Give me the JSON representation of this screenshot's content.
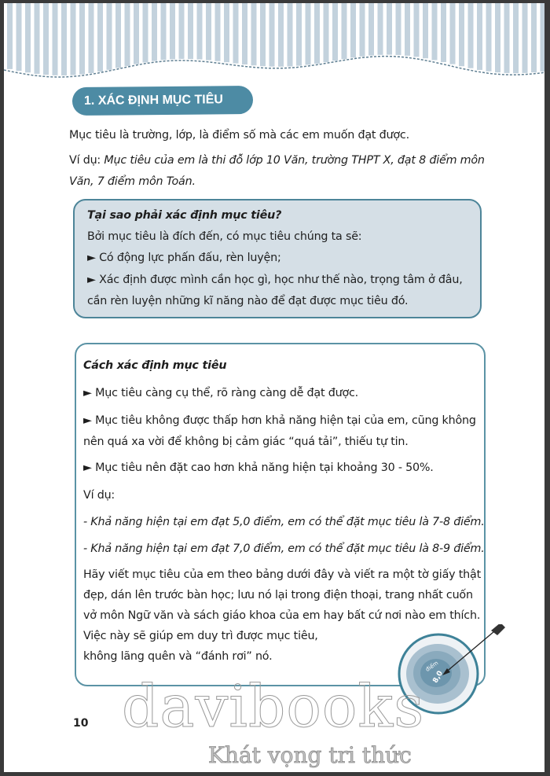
{
  "section_title": "1. XÁC ĐỊNH MỤC TIÊU",
  "intro": {
    "line1": "Mục tiêu là trường, lớp, là điểm số mà các em muốn đạt được.",
    "example_label": "Ví dụ: ",
    "example_line1": "Mục tiêu của em là thi đỗ lớp 10 Văn, trường THPT X, đạt 8 điểm môn",
    "example_line2": "Văn, 7 điểm môn Toán."
  },
  "why_box": {
    "heading": "Tại sao phải xác định mục tiêu?",
    "lead": "Bởi mục tiêu là đích đến, có mục tiêu chúng ta sẽ:",
    "bullet1": "► Có động lực phấn đấu, rèn luyện;",
    "bullet2_line1": "► Xác định được mình cần học gì, học như thế nào, trọng tâm ở đâu,",
    "bullet2_line2": "cần rèn luyện những kĩ năng nào để đạt được mục tiêu đó."
  },
  "how_box": {
    "heading": "Cách xác định mục tiêu",
    "bullet1": "► Mục tiêu càng cụ thể, rõ ràng càng dễ đạt được.",
    "bullet2_line1": "► Mục tiêu không được thấp hơn khả năng hiện tại của em, cũng không",
    "bullet2_line2": "nên quá xa vời để không bị cảm giác “quá tải”, thiếu tự tin.",
    "bullet3": "► Mục tiêu nên đặt cao hơn khả năng hiện tại khoảng 30 - 50%.",
    "example_label": "Ví dụ:",
    "example1": "- Khả năng hiện tại em đạt 5,0 điểm, em có thể đặt mục tiêu là 7-8 điểm.",
    "example2": "- Khả năng hiện tại em đạt 7,0 điểm, em có thể đặt mục tiêu là 8-9 điểm.",
    "closing_lines": [
      "Hãy viết mục tiêu của em theo bảng dưới đây và viết ra một tờ giấy thật",
      "đẹp, dán lên trước bàn học; lưu nó lại trong điện thoại, trang nhất cuốn",
      "vở môn Ngữ văn và sách giáo khoa của em hay bất cứ nơi nào em thích.",
      "Việc này sẽ giúp em duy trì được mục tiêu,",
      "không lãng quên và “đánh rơi” nó."
    ]
  },
  "target_illustration": {
    "label_top": "điểm",
    "label_value": "8,0"
  },
  "page_number": "10",
  "watermark": {
    "brand": "davibooks",
    "slogan": "Khát vọng tri thức"
  },
  "colors": {
    "accent": "#4d8ba4",
    "box_fill": "#d5dfe6",
    "stripe": "#c3d2dd"
  }
}
